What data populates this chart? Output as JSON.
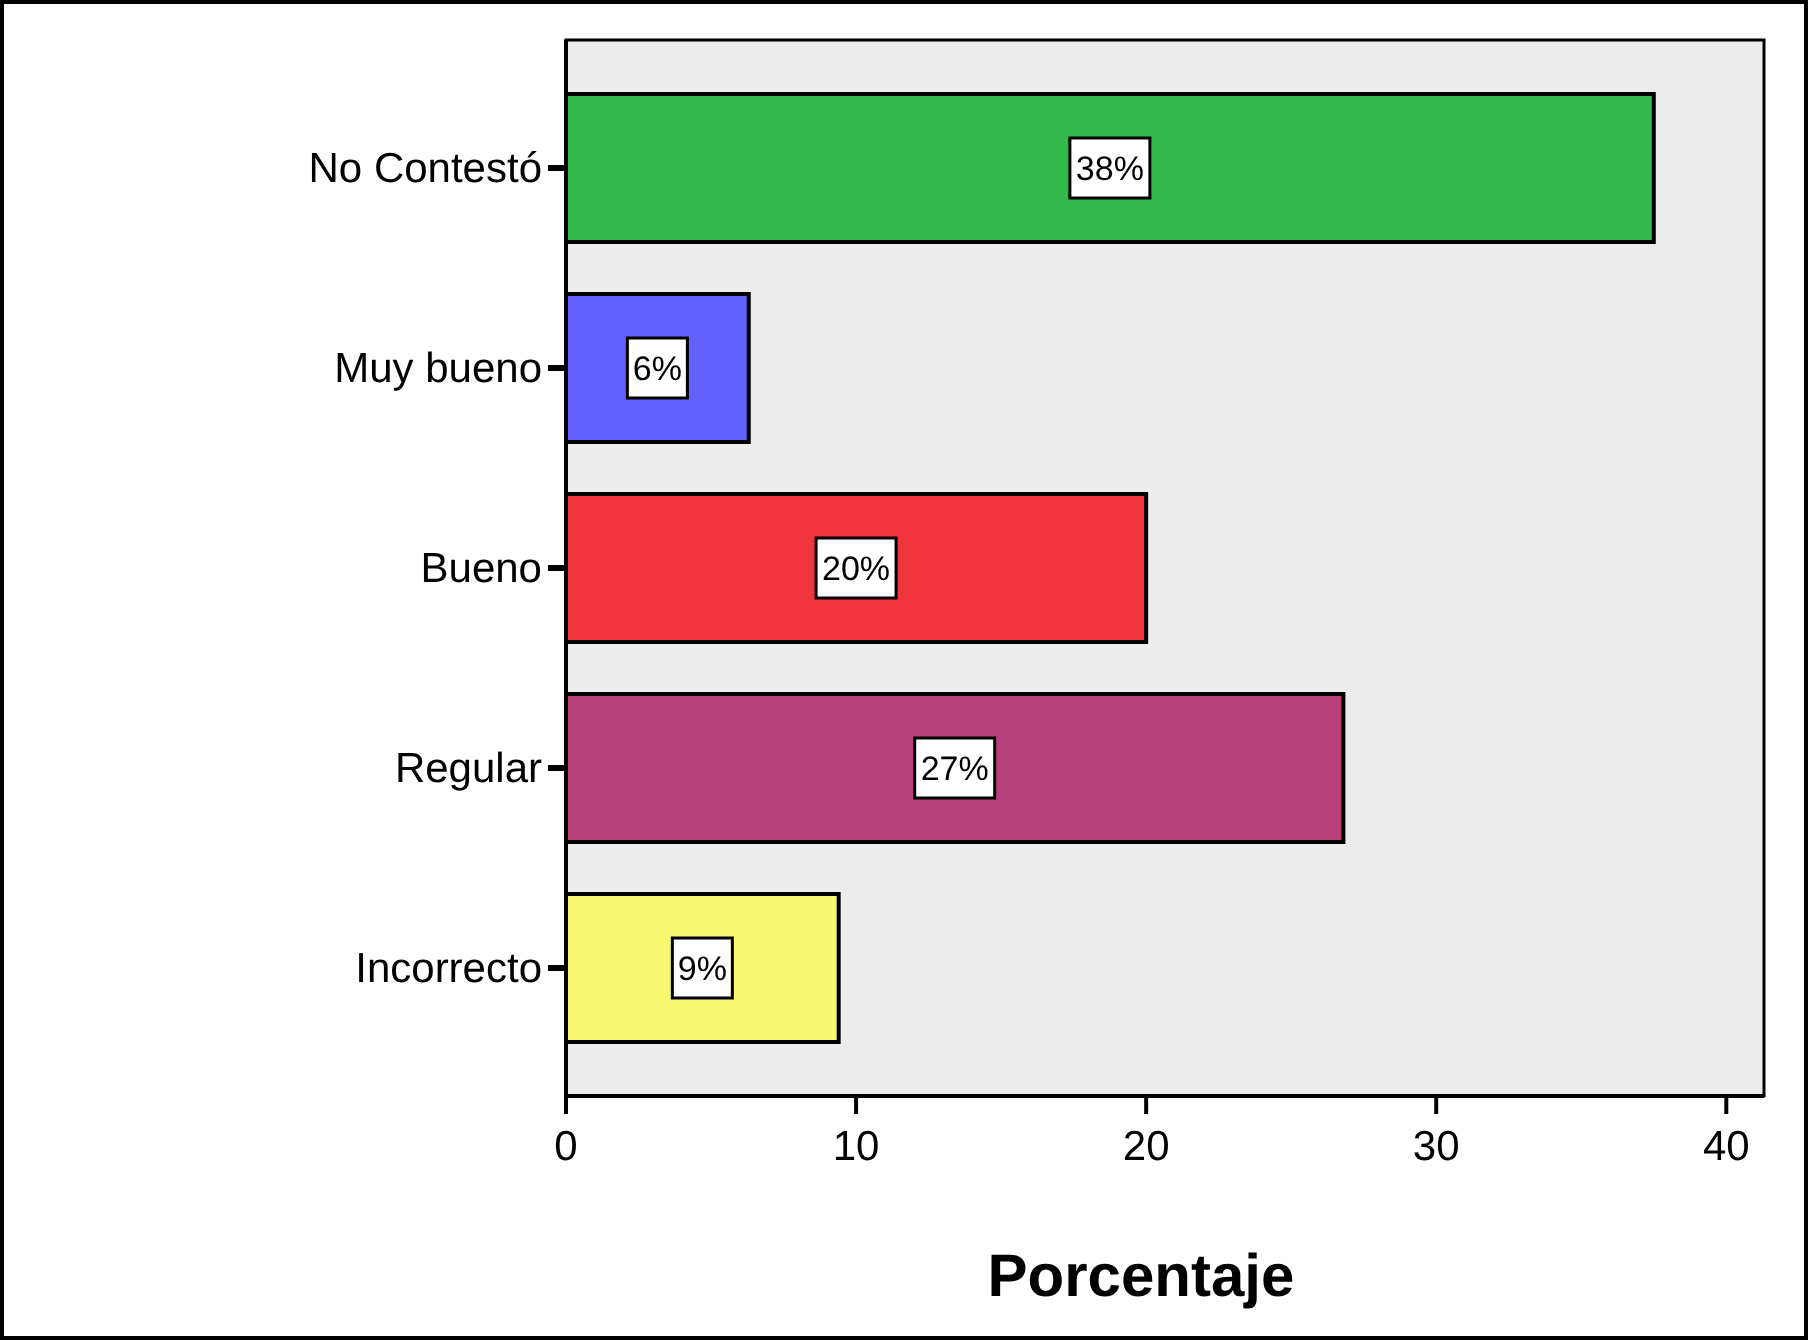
{
  "chart_data": {
    "type": "bar",
    "orientation": "horizontal",
    "xlabel": "Porcentaje",
    "categories": [
      "No Contestó",
      "Muy bueno",
      "Bueno",
      "Regular",
      "Incorrecto"
    ],
    "values": [
      37.5,
      6.3,
      20.0,
      26.8,
      9.4
    ],
    "colors": [
      "#33b84b",
      "#6262ff",
      "#f0353d",
      "#b8417c",
      "#f9f871"
    ],
    "value_labels": [
      "38%",
      "6%",
      "20%",
      "27%",
      "9%"
    ],
    "xlim": [
      0,
      41.3
    ],
    "xticks": [
      0,
      10,
      20,
      30,
      40
    ],
    "grid": false
  }
}
